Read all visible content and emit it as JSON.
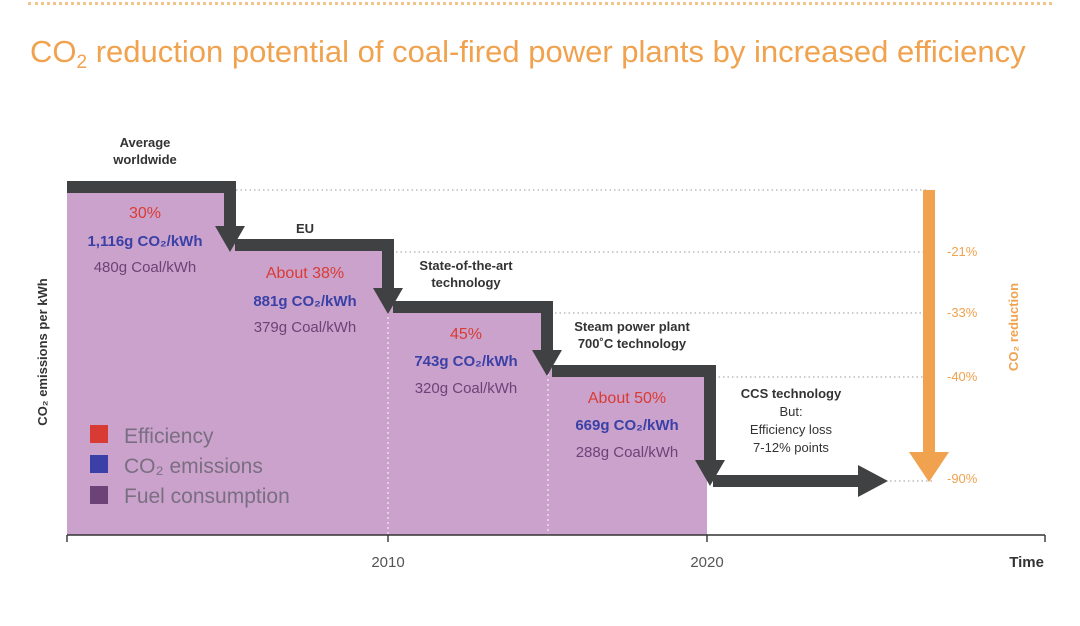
{
  "header": {
    "title_pre": "CO",
    "title_sub": "2",
    "title_post": " reduction potential of coal-fired power plants by increased efficiency"
  },
  "colors": {
    "accent": "#f0a24e",
    "fill": "#cba2cc",
    "arrow": "#3f4143",
    "efficiency": "#d83b33",
    "co2": "#3a40a6",
    "coal": "#6b4377"
  },
  "chart_data": {
    "type": "area",
    "ylabel": "CO₂ emissions per kWh",
    "xlabel": "Time",
    "x_ticks": [
      {
        "label": "2010"
      },
      {
        "label": "2020"
      }
    ],
    "legend": {
      "placement": "bottom-left",
      "items": [
        {
          "label": "Efficiency",
          "key": "efficiency"
        },
        {
          "label": "CO₂ emissions",
          "key": "co2"
        },
        {
          "label": "Fuel consumption",
          "key": "coal"
        }
      ]
    },
    "steps": [
      {
        "stage": "Average worldwide",
        "efficiency": "30%",
        "co2": "1,116g CO₂/kWh",
        "co2_value": 1116,
        "coal": "480g Coal/kWh",
        "coal_value": 480
      },
      {
        "stage": "EU",
        "efficiency": "About 38%",
        "co2": "881g CO₂/kWh",
        "co2_value": 881,
        "coal": "379g Coal/kWh",
        "coal_value": 379
      },
      {
        "stage": "State-of-the-art technology",
        "efficiency": "45%",
        "co2": "743g CO₂/kWh",
        "co2_value": 743,
        "coal": "320g Coal/kWh",
        "coal_value": 320
      },
      {
        "stage": "Steam power plant 700˚C technology",
        "efficiency": "About 50%",
        "co2": "669g CO₂/kWh",
        "co2_value": 669,
        "coal": "288g Coal/kWh",
        "coal_value": 288
      },
      {
        "stage": "CCS technology",
        "note": [
          "But:",
          "Efficiency loss",
          "7-12% points"
        ]
      }
    ],
    "reduction_axis": {
      "label": "CO₂ reduction",
      "levels": [
        "-21%",
        "-33%",
        "-40%",
        "-90%"
      ]
    }
  }
}
